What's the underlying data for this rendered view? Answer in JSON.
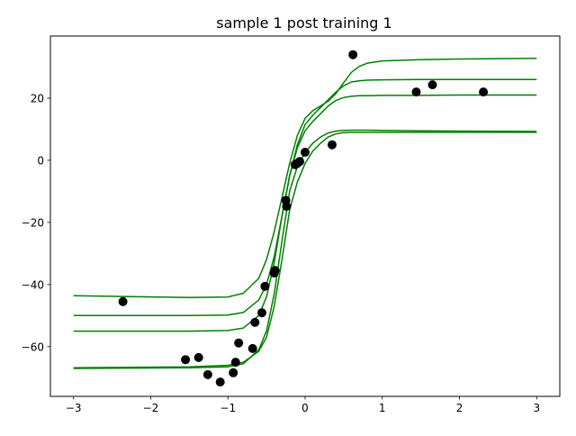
{
  "chart_data": {
    "type": "scatter",
    "title": "sample 1 post training 1",
    "xlabel": "",
    "ylabel": "",
    "xlim": [
      -3.3,
      3.3
    ],
    "ylim": [
      -76,
      40
    ],
    "xticks": [
      -3,
      -2,
      -1,
      0,
      1,
      2,
      3
    ],
    "yticks": [
      -60,
      -40,
      -20,
      0,
      20
    ],
    "xtick_labels": [
      "−3",
      "−2",
      "−1",
      "0",
      "1",
      "2",
      "3"
    ],
    "ytick_labels": [
      "−60",
      "−40",
      "−20",
      "0",
      "20"
    ],
    "grid": false,
    "colors": {
      "points": "#000000",
      "curves": "#008000",
      "axes": "#000000",
      "background": "#ffffff"
    },
    "points": [
      {
        "x": -2.36,
        "y": -45.5
      },
      {
        "x": -1.55,
        "y": -64.2
      },
      {
        "x": -1.38,
        "y": -63.5
      },
      {
        "x": -1.26,
        "y": -69.0
      },
      {
        "x": -1.1,
        "y": -71.4
      },
      {
        "x": -0.93,
        "y": -68.4
      },
      {
        "x": -0.9,
        "y": -65.0
      },
      {
        "x": -0.86,
        "y": -58.8
      },
      {
        "x": -0.68,
        "y": -60.6
      },
      {
        "x": -0.65,
        "y": -52.2
      },
      {
        "x": -0.56,
        "y": -49.1
      },
      {
        "x": -0.52,
        "y": -40.6
      },
      {
        "x": -0.4,
        "y": -36.3
      },
      {
        "x": -0.39,
        "y": -35.5
      },
      {
        "x": -0.25,
        "y": -12.9
      },
      {
        "x": -0.24,
        "y": -14.8
      },
      {
        "x": -0.13,
        "y": -1.4
      },
      {
        "x": -0.1,
        "y": -1.0
      },
      {
        "x": -0.07,
        "y": -0.4
      },
      {
        "x": 0.0,
        "y": 2.6
      },
      {
        "x": 0.35,
        "y": 5.0
      },
      {
        "x": 0.62,
        "y": 34.0
      },
      {
        "x": 1.44,
        "y": 22.0
      },
      {
        "x": 1.65,
        "y": 24.3
      },
      {
        "x": 2.31,
        "y": 22.0
      }
    ],
    "curves": [
      {
        "x": [
          -3,
          -1.5,
          -1.0,
          -0.8,
          -0.6,
          -0.5,
          -0.4,
          -0.3,
          -0.2,
          -0.1,
          0.0,
          0.1,
          0.2,
          0.3,
          0.4,
          0.5,
          0.6,
          0.7,
          0.8,
          1.0,
          1.5,
          2.0,
          3.0
        ],
        "y": [
          -43.6,
          -44.2,
          -44.0,
          -42.8,
          -38.0,
          -32.0,
          -23.0,
          -12.0,
          -1.0,
          8.0,
          13.5,
          16.0,
          17.5,
          19.0,
          21.5,
          25.0,
          28.3,
          30.2,
          31.2,
          32.0,
          32.4,
          32.6,
          32.8
        ]
      },
      {
        "x": [
          -3,
          -1.5,
          -1.0,
          -0.8,
          -0.6,
          -0.5,
          -0.4,
          -0.3,
          -0.2,
          -0.1,
          0.0,
          0.1,
          0.2,
          0.3,
          0.4,
          0.5,
          0.6,
          0.7,
          0.8,
          1.0,
          1.5,
          2.0,
          3.0
        ],
        "y": [
          -50.0,
          -50.0,
          -49.8,
          -49.0,
          -45.0,
          -40.0,
          -31.0,
          -18.0,
          -5.0,
          5.0,
          11.5,
          14.5,
          17.0,
          19.5,
          22.0,
          24.0,
          25.2,
          25.6,
          25.8,
          25.9,
          26.0,
          26.0,
          26.0
        ]
      },
      {
        "x": [
          -3,
          -1.5,
          -1.0,
          -0.8,
          -0.6,
          -0.5,
          -0.4,
          -0.3,
          -0.2,
          -0.1,
          0.0,
          0.1,
          0.2,
          0.3,
          0.4,
          0.5,
          0.6,
          0.7,
          0.8,
          1.0,
          1.5,
          2.0,
          3.0
        ],
        "y": [
          -55.0,
          -55.0,
          -54.8,
          -54.0,
          -50.0,
          -44.0,
          -33.0,
          -18.0,
          -5.0,
          4.0,
          9.5,
          12.5,
          15.0,
          17.5,
          19.3,
          20.2,
          20.6,
          20.8,
          20.8,
          20.9,
          20.9,
          21.0,
          21.0
        ]
      },
      {
        "x": [
          -3,
          -1.5,
          -1.0,
          -0.8,
          -0.6,
          -0.5,
          -0.4,
          -0.3,
          -0.2,
          -0.1,
          0.0,
          0.1,
          0.2,
          0.3,
          0.4,
          0.5,
          0.6,
          0.7,
          0.8,
          1.0,
          1.5,
          2.0,
          3.0
        ],
        "y": [
          -67.0,
          -66.8,
          -66.5,
          -65.5,
          -61.0,
          -55.0,
          -43.0,
          -26.0,
          -10.0,
          -2.0,
          2.5,
          5.5,
          7.5,
          8.8,
          9.4,
          9.6,
          9.7,
          9.7,
          9.7,
          9.6,
          9.5,
          9.4,
          9.3
        ]
      },
      {
        "x": [
          -3,
          -1.5,
          -1.0,
          -0.8,
          -0.6,
          -0.5,
          -0.4,
          -0.3,
          -0.2,
          -0.1,
          0.0,
          0.1,
          0.2,
          0.3,
          0.4,
          0.5,
          0.6,
          0.7,
          0.8,
          1.0,
          1.5,
          2.0,
          3.0
        ],
        "y": [
          -66.8,
          -66.5,
          -66.0,
          -65.0,
          -61.5,
          -57.0,
          -47.0,
          -32.0,
          -16.0,
          -7.0,
          -1.0,
          3.0,
          5.5,
          7.5,
          8.5,
          8.9,
          9.0,
          9.0,
          9.0,
          9.0,
          9.0,
          9.0,
          9.0
        ]
      }
    ]
  }
}
